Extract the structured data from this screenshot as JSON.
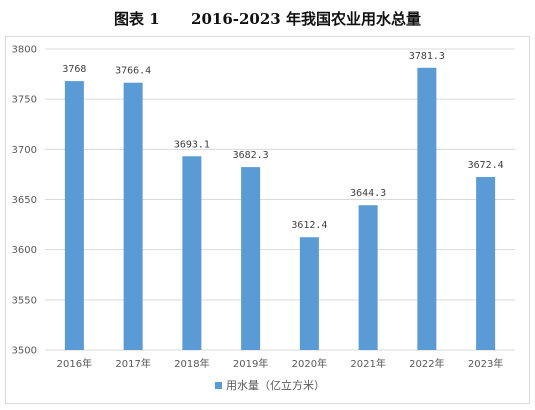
{
  "title": "图表 1      2016-2023 年我国农业用水总量",
  "chart_data": {
    "type": "bar",
    "title": "图表 1      2016-2023 年我国农业用水总量",
    "categories": [
      "2016年",
      "2017年",
      "2018年",
      "2019年",
      "2020年",
      "2021年",
      "2022年",
      "2023年"
    ],
    "series": [
      {
        "name": "用水量（亿立方米）",
        "values": [
          3768,
          3766.4,
          3693.1,
          3682.3,
          3612.4,
          3644.3,
          3781.3,
          3672.4
        ],
        "labels": [
          "3768",
          "3766.4",
          "3693.1",
          "3682.3",
          "3612.4",
          "3644.3",
          "3781.3",
          "3672.4"
        ]
      }
    ],
    "ylim": [
      3500,
      3800
    ],
    "yticks": [
      3500,
      3550,
      3600,
      3650,
      3700,
      3750,
      3800
    ],
    "xlabel": "",
    "ylabel": "",
    "grid": true,
    "legend_position": "bottom",
    "colors": {
      "bar": "#5b9bd5",
      "grid": "#d9d9d9"
    }
  }
}
